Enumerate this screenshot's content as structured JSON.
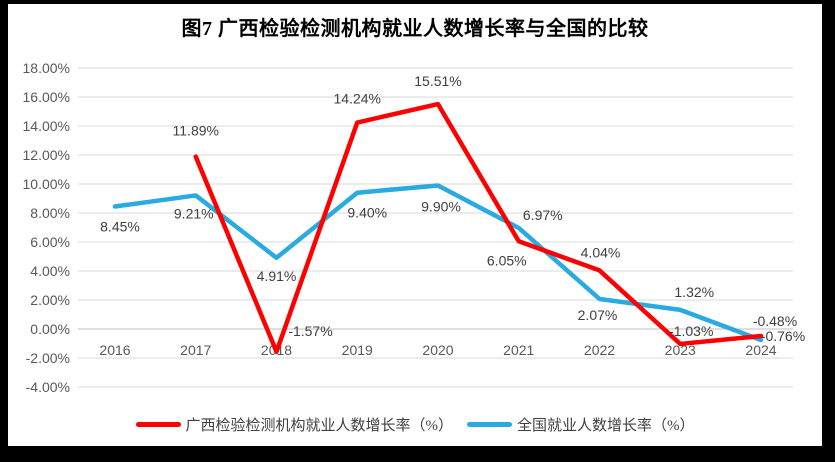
{
  "title": "图7 广西检验检测机构就业人数增长率与全国的比较",
  "chart_data": {
    "type": "line",
    "title": "图7 广西检验检测机构就业人数增长率与全国的比较",
    "categories": [
      "2016",
      "2017",
      "2018",
      "2019",
      "2020",
      "2021",
      "2022",
      "2023",
      "2024"
    ],
    "series": [
      {
        "name": "广西检验检测机构就业人数增长率（%）",
        "color": "#ff0000",
        "values": [
          null,
          11.89,
          -1.57,
          14.24,
          15.51,
          6.05,
          4.04,
          -1.03,
          -0.48
        ],
        "data_labels": [
          null,
          "11.89%",
          "-1.57%",
          "14.24%",
          "15.51%",
          "6.05%",
          "4.04%",
          "-1.03%",
          "-0.48%"
        ],
        "label_offsets": [
          null,
          [
            0,
            -26
          ],
          [
            34,
            -21
          ],
          [
            0,
            -24
          ],
          [
            0,
            -23
          ],
          [
            -12,
            19
          ],
          [
            1,
            -18
          ],
          [
            11,
            -13
          ],
          [
            14,
            -15
          ]
        ]
      },
      {
        "name": "全国就业人数增长率（%）",
        "color": "#29abe2",
        "values": [
          8.45,
          9.21,
          4.91,
          9.4,
          9.9,
          6.97,
          2.07,
          1.32,
          -0.76
        ],
        "data_labels": [
          "8.45%",
          "9.21%",
          "4.91%",
          "9.40%",
          "9.90%",
          "6.97%",
          "2.07%",
          "1.32%",
          "-0.76%"
        ],
        "label_offsets": [
          [
            5,
            20
          ],
          [
            -2,
            18
          ],
          [
            0,
            18
          ],
          [
            10,
            20
          ],
          [
            3,
            21
          ],
          [
            24,
            -13
          ],
          [
            -2,
            16
          ],
          [
            14,
            -18
          ],
          [
            22,
            -4
          ]
        ]
      }
    ],
    "ylim": [
      -4,
      18
    ],
    "ytick_step": 2,
    "ytick_labels": [
      "18.00%",
      "16.00%",
      "14.00%",
      "12.00%",
      "10.00%",
      "8.00%",
      "6.00%",
      "4.00%",
      "2.00%",
      "0.00%",
      "-2.00%",
      "-4.00%"
    ],
    "grid": true,
    "legend_position": "bottom",
    "colors": {
      "gridline": "#d9d9d9",
      "zero_line": "#bfbfbf",
      "axis_text": "#595959",
      "data_label_text": "#3f3f3f",
      "panel_background": "#ffffff",
      "frame_background": "#000000"
    }
  }
}
